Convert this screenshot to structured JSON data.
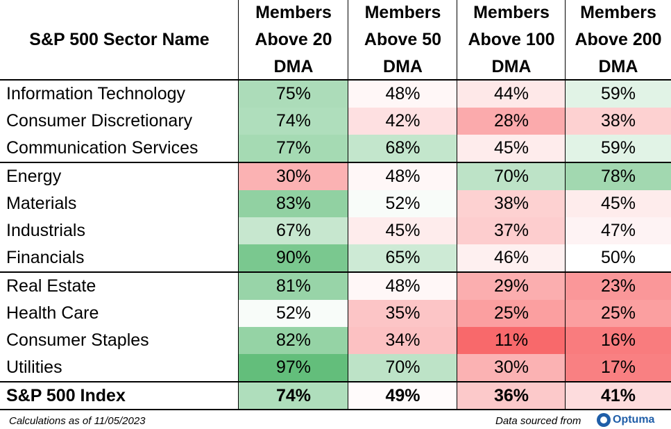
{
  "headers": [
    "S&P 500 Sector Name",
    "Members\nAbove 20\nDMA",
    "Members\nAbove 50\nDMA",
    "Members\nAbove 100\nDMA",
    "Members\nAbove 200\nDMA"
  ],
  "rows": [
    {
      "name": "Information Technology",
      "values": [
        "75%",
        "48%",
        "44%",
        "59%"
      ]
    },
    {
      "name": "Consumer Discretionary",
      "values": [
        "74%",
        "42%",
        "28%",
        "38%"
      ]
    },
    {
      "name": "Communication Services",
      "values": [
        "77%",
        "68%",
        "45%",
        "59%"
      ]
    },
    {
      "name": "Energy",
      "values": [
        "30%",
        "48%",
        "70%",
        "78%"
      ]
    },
    {
      "name": "Materials",
      "values": [
        "83%",
        "52%",
        "38%",
        "45%"
      ]
    },
    {
      "name": "Industrials",
      "values": [
        "67%",
        "45%",
        "37%",
        "47%"
      ]
    },
    {
      "name": "Financials",
      "values": [
        "90%",
        "65%",
        "46%",
        "50%"
      ]
    },
    {
      "name": "Real Estate",
      "values": [
        "81%",
        "48%",
        "29%",
        "23%"
      ]
    },
    {
      "name": "Health Care",
      "values": [
        "52%",
        "35%",
        "25%",
        "25%"
      ]
    },
    {
      "name": "Consumer Staples",
      "values": [
        "82%",
        "34%",
        "11%",
        "16%"
      ]
    },
    {
      "name": "Utilities",
      "values": [
        "97%",
        "70%",
        "30%",
        "17%"
      ]
    }
  ],
  "total": {
    "name": "S&P 500 Index",
    "values": [
      "74%",
      "49%",
      "36%",
      "41%"
    ]
  },
  "footer": {
    "left": "Calculations as of 11/05/2023",
    "right": "Data sourced from",
    "logo_text": "Optuma",
    "logo_icon": "optuma-logo-icon"
  },
  "colors": {
    "low": "#f8696b",
    "mid": "#ffffff",
    "high": "#63be7b",
    "logo": "#1f5ea8"
  }
}
